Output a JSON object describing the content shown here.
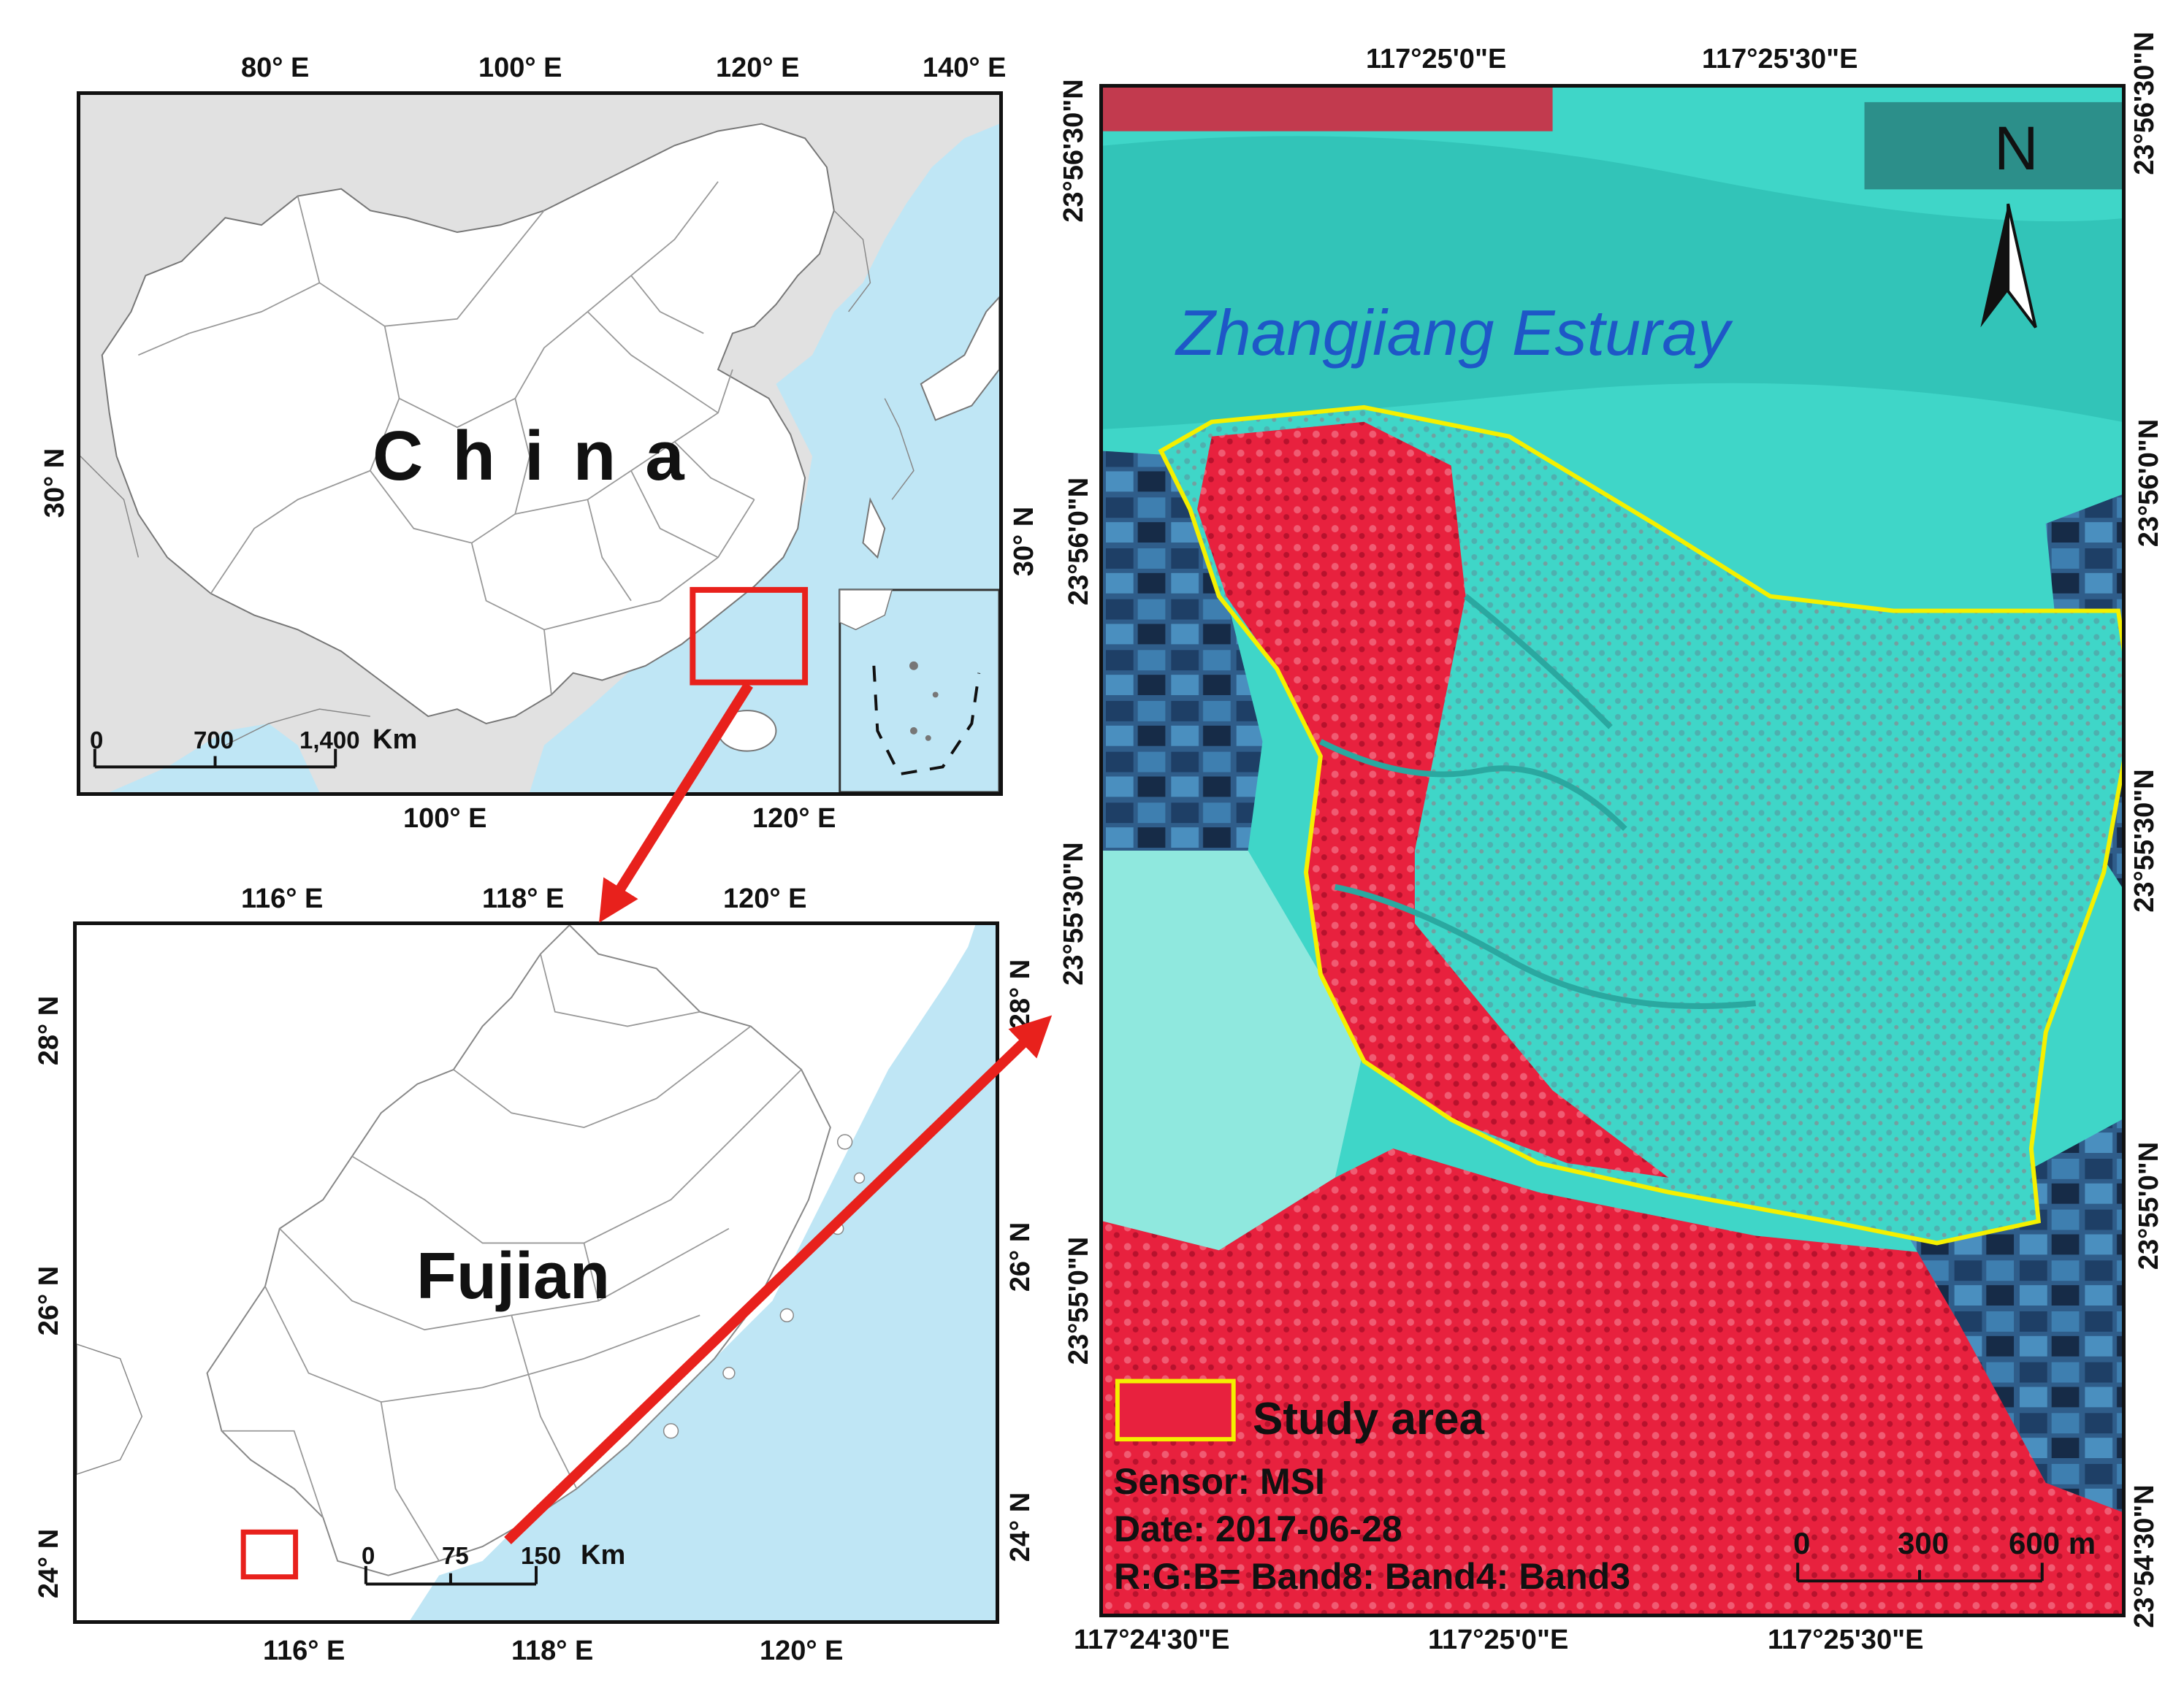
{
  "china_map": {
    "title": "China",
    "top_ticks": [
      "80° E",
      "100° E",
      "120° E",
      "140° E"
    ],
    "bottom_ticks": [
      "100° E",
      "120° E"
    ],
    "left_ticks": [
      "30° N"
    ],
    "right_ticks": [
      "30° N"
    ],
    "scale": {
      "zero": "0",
      "mid": "700",
      "end": "1,400",
      "unit": "Km"
    }
  },
  "fujian_map": {
    "title": "Fujian",
    "top_ticks": [
      "116° E",
      "118° E",
      "120° E"
    ],
    "bottom_ticks": [
      "116° E",
      "118° E",
      "120° E"
    ],
    "left_ticks": [
      "28° N",
      "26° N",
      "24° N"
    ],
    "right_ticks": [
      "28° N",
      "26° N",
      "24° N"
    ],
    "scale": {
      "zero": "0",
      "mid": "75",
      "end": "150",
      "unit": "Km"
    }
  },
  "satellite_map": {
    "estuary_label": "Zhangjiang Esturay",
    "north_label": "N",
    "top_ticks": [
      "117°25'0\"E",
      "117°25'30\"E"
    ],
    "bottom_ticks": [
      "117°24'30\"E",
      "117°25'0\"E",
      "117°25'30\"E"
    ],
    "left_ticks": [
      "23°56'30\"N",
      "23°56'0\"N",
      "23°55'30\"N",
      "23°55'0\"N"
    ],
    "right_ticks": [
      "23°56'30\"N",
      "23°56'0\"N",
      "23°55'30\"N",
      "23°55'0\"N",
      "23°54'30\"N"
    ],
    "legend": {
      "study_area": "Study area",
      "sensor": "Sensor: MSI",
      "date": "Date: 2017-06-28",
      "bands": "R:G:B= Band8: Band4: Band3"
    },
    "scale": {
      "zero": "0",
      "mid": "300",
      "end": "600 m"
    }
  },
  "colors": {
    "sea": "#bfe6f5",
    "land_bg": "#e1e1e1",
    "china_fill": "#ffffff",
    "highlight_box": "#e8211c",
    "study_boundary": "#f4f000",
    "estuary_text": "#1e57c7",
    "water_cyan": "#3fd6c8",
    "vegetation_red": "#e8213e"
  }
}
